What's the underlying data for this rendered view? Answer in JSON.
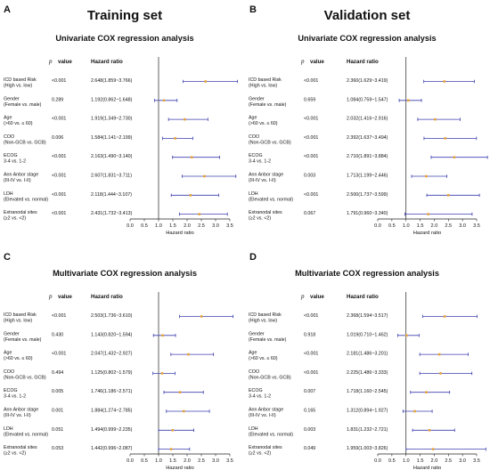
{
  "settitles": [
    "Training set",
    "Validation set"
  ],
  "panels_meta": {
    "pvalue_head": "value",
    "p_symbol": "p",
    "hr_head": "Hazard ratio",
    "xlabel": "Hazard ratio"
  },
  "chart_data": [
    {
      "type": "forest",
      "panel": "A",
      "title": "Univariate COX regression analysis",
      "xlabel": "Hazard ratio",
      "xlim": [
        0,
        3.5
      ],
      "xticks": [
        "0.0",
        "0.5",
        "1.0",
        "1.5",
        "2.0",
        "2.5",
        "3.0",
        "3.5"
      ],
      "reference_line": 1,
      "rows": [
        {
          "name": "ICD based Risk",
          "sub": "(High vs. low)",
          "p": "<0.001",
          "hr_text": "2.648(1.859~3.766)",
          "hr": 2.648,
          "lo": 1.859,
          "hi": 3.766
        },
        {
          "name": "Gender",
          "sub": "(Female vs. male)",
          "p": "0.289",
          "hr_text": "1.192(0.862~1.648)",
          "hr": 1.192,
          "lo": 0.862,
          "hi": 1.648
        },
        {
          "name": "Age",
          "sub": "(>60 vs. ≤ 60)",
          "p": "<0.001",
          "hr_text": "1.919(1.349~2.730)",
          "hr": 1.919,
          "lo": 1.349,
          "hi": 2.73
        },
        {
          "name": "COO",
          "sub": "(Non-GCB vs. GCB)",
          "p": "0.006",
          "hr_text": "1.584(1.141~2.199)",
          "hr": 1.584,
          "lo": 1.141,
          "hi": 2.199
        },
        {
          "name": "ECOG",
          "sub": "3-4 vs. 1-2",
          "p": "<0.001",
          "hr_text": "2.163(1.490~3.140)",
          "hr": 2.163,
          "lo": 1.49,
          "hi": 3.14
        },
        {
          "name": "Ann Anbor stage",
          "sub": "(III-IV vs. I-II)",
          "p": "<0.001",
          "hr_text": "2.607(1.831~3.711)",
          "hr": 2.607,
          "lo": 1.831,
          "hi": 3.711
        },
        {
          "name": "LDH",
          "sub": "(Elevated vs. normal)",
          "p": "<0.001",
          "hr_text": "2.118(1.444~3.107)",
          "hr": 2.118,
          "lo": 1.444,
          "hi": 3.107
        },
        {
          "name": "Extranodal sites",
          "sub": "(≥2 vs. <2)",
          "p": "<0.001",
          "hr_text": "2.431(1.732~3.413)",
          "hr": 2.431,
          "lo": 1.732,
          "hi": 3.413
        }
      ]
    },
    {
      "type": "forest",
      "panel": "B",
      "title": "Univariate COX regression analysis",
      "xlabel": "Hazard ratio",
      "xlim": [
        0,
        3.5
      ],
      "xticks": [
        "0.0",
        "0.5",
        "1.0",
        "1.5",
        "2.0",
        "2.5",
        "3.0",
        "3.5"
      ],
      "reference_line": 1,
      "rows": [
        {
          "name": "ICD based Risk",
          "sub": "(High vs. low)",
          "p": "<0.001",
          "hr_text": "2.360(1.629~3.419)",
          "hr": 2.36,
          "lo": 1.629,
          "hi": 3.419
        },
        {
          "name": "Gender",
          "sub": "(Female vs. male)",
          "p": "0.659",
          "hr_text": "1.084(0.759~1.547)",
          "hr": 1.084,
          "lo": 0.759,
          "hi": 1.547
        },
        {
          "name": "Age",
          "sub": "(>60 vs. ≤ 60)",
          "p": "<0.001",
          "hr_text": "2.032(1.416~2.916)",
          "hr": 2.032,
          "lo": 1.416,
          "hi": 2.916
        },
        {
          "name": "COO",
          "sub": "(Non-GCB vs. GCB)",
          "p": "<0.001",
          "hr_text": "2.392(1.637~3.494)",
          "hr": 2.392,
          "lo": 1.637,
          "hi": 3.494
        },
        {
          "name": "ECOG",
          "sub": "3-4 vs. 1-2",
          "p": "<0.001",
          "hr_text": "2.710(1.891~3.884)",
          "hr": 2.71,
          "lo": 1.891,
          "hi": 3.884
        },
        {
          "name": "Ann Anbor stage",
          "sub": "(III-IV vs. I-II)",
          "p": "0.003",
          "hr_text": "1.713(1.199~2.446)",
          "hr": 1.713,
          "lo": 1.199,
          "hi": 2.446
        },
        {
          "name": "LDH",
          "sub": "(Elevated vs. normal)",
          "p": "<0.001",
          "hr_text": "2.500(1.737~3.599)",
          "hr": 2.5,
          "lo": 1.737,
          "hi": 3.599
        },
        {
          "name": "Extranodal sites",
          "sub": "(≥2 vs. <2)",
          "p": "0.067",
          "hr_text": "1.791(0.960~3.340)",
          "hr": 1.791,
          "lo": 0.96,
          "hi": 3.34
        }
      ]
    },
    {
      "type": "forest",
      "panel": "C",
      "title": "Multivariate COX regression analysis",
      "xlabel": "Hazard ratio",
      "xlim": [
        0,
        3.5
      ],
      "xticks": [
        "0.0",
        "0.5",
        "1.0",
        "1.5",
        "2.0",
        "2.5",
        "3.0",
        "3.5"
      ],
      "reference_line": 1,
      "rows": [
        {
          "name": "ICD based Risk",
          "sub": "(High vs. low)",
          "p": "<0.001",
          "hr_text": "2.503(1.736~3.610)",
          "hr": 2.503,
          "lo": 1.736,
          "hi": 3.61
        },
        {
          "name": "Gender",
          "sub": "(Female vs. male)",
          "p": "0.430",
          "hr_text": "1.143(0.820~1.594)",
          "hr": 1.143,
          "lo": 0.82,
          "hi": 1.594
        },
        {
          "name": "Age",
          "sub": "(>60 vs. ≤ 60)",
          "p": "<0.001",
          "hr_text": "2.047(1.432~2.927)",
          "hr": 2.047,
          "lo": 1.432,
          "hi": 2.927
        },
        {
          "name": "COO",
          "sub": "(Non-GCB vs. GCB)",
          "p": "0.494",
          "hr_text": "1.125(0.802~1.579)",
          "hr": 1.125,
          "lo": 0.802,
          "hi": 1.579
        },
        {
          "name": "ECOG",
          "sub": "3-4 vs. 1-2",
          "p": "0.005",
          "hr_text": "1.746(1.186~2.571)",
          "hr": 1.746,
          "lo": 1.186,
          "hi": 2.571
        },
        {
          "name": "Ann Anbor stage",
          "sub": "(III-IV vs. I-II)",
          "p": "0.001",
          "hr_text": "1.884(1.274~2.785)",
          "hr": 1.884,
          "lo": 1.274,
          "hi": 2.785
        },
        {
          "name": "LDH",
          "sub": "(Elevated vs. normal)",
          "p": "0.051",
          "hr_text": "1.494(0.999~2.235)",
          "hr": 1.494,
          "lo": 0.999,
          "hi": 2.235
        },
        {
          "name": "Extranodal sites",
          "sub": "(≥2 vs. <2)",
          "p": "0.053",
          "hr_text": "1.442(0.996~2.087)",
          "hr": 1.442,
          "lo": 0.996,
          "hi": 2.087
        }
      ]
    },
    {
      "type": "forest",
      "panel": "D",
      "title": "Multivariate COX regression analysis",
      "xlabel": "Hazard ratio",
      "xlim": [
        0,
        3.5
      ],
      "xticks": [
        "0.0",
        "0.5",
        "1.0",
        "1.5",
        "2.0",
        "2.5",
        "3.0",
        "3.5"
      ],
      "reference_line": 1,
      "rows": [
        {
          "name": "ICD based Risk",
          "sub": "(High vs. low)",
          "p": "<0.001",
          "hr_text": "2.368(1.594~3.517)",
          "hr": 2.368,
          "lo": 1.594,
          "hi": 3.517
        },
        {
          "name": "Gender",
          "sub": "(Female vs. male)",
          "p": "0.918",
          "hr_text": "1.019(0.710~1.462)",
          "hr": 1.019,
          "lo": 0.71,
          "hi": 1.462
        },
        {
          "name": "Age",
          "sub": "(>60 vs. ≤ 60)",
          "p": "<0.001",
          "hr_text": "2.181(1.486~3.201)",
          "hr": 2.181,
          "lo": 1.486,
          "hi": 3.201
        },
        {
          "name": "COO",
          "sub": "(Non-GCB vs. GCB)",
          "p": "<0.001",
          "hr_text": "2.225(1.486~3.333)",
          "hr": 2.225,
          "lo": 1.486,
          "hi": 3.333
        },
        {
          "name": "ECOG",
          "sub": "3-4 vs. 1-2",
          "p": "0.007",
          "hr_text": "1.718(1.160~2.545)",
          "hr": 1.718,
          "lo": 1.16,
          "hi": 2.545
        },
        {
          "name": "Ann Anbor stage",
          "sub": "(III-IV vs. I-II)",
          "p": "0.165",
          "hr_text": "1.312(0.894~1.927)",
          "hr": 1.312,
          "lo": 0.894,
          "hi": 1.927
        },
        {
          "name": "LDH",
          "sub": "(Elevated vs. normal)",
          "p": "0.003",
          "hr_text": "1.831(1.232~2.721)",
          "hr": 1.831,
          "lo": 1.232,
          "hi": 2.721
        },
        {
          "name": "Extranodal sites",
          "sub": "(≥2 vs. <2)",
          "p": "0.049",
          "hr_text": "1.959(1.003~3.826)",
          "hr": 1.959,
          "lo": 1.003,
          "hi": 3.826
        }
      ]
    }
  ],
  "colors": {
    "ci_line": "#3b3fae",
    "point": "#e8a43a",
    "axis": "#222222"
  }
}
